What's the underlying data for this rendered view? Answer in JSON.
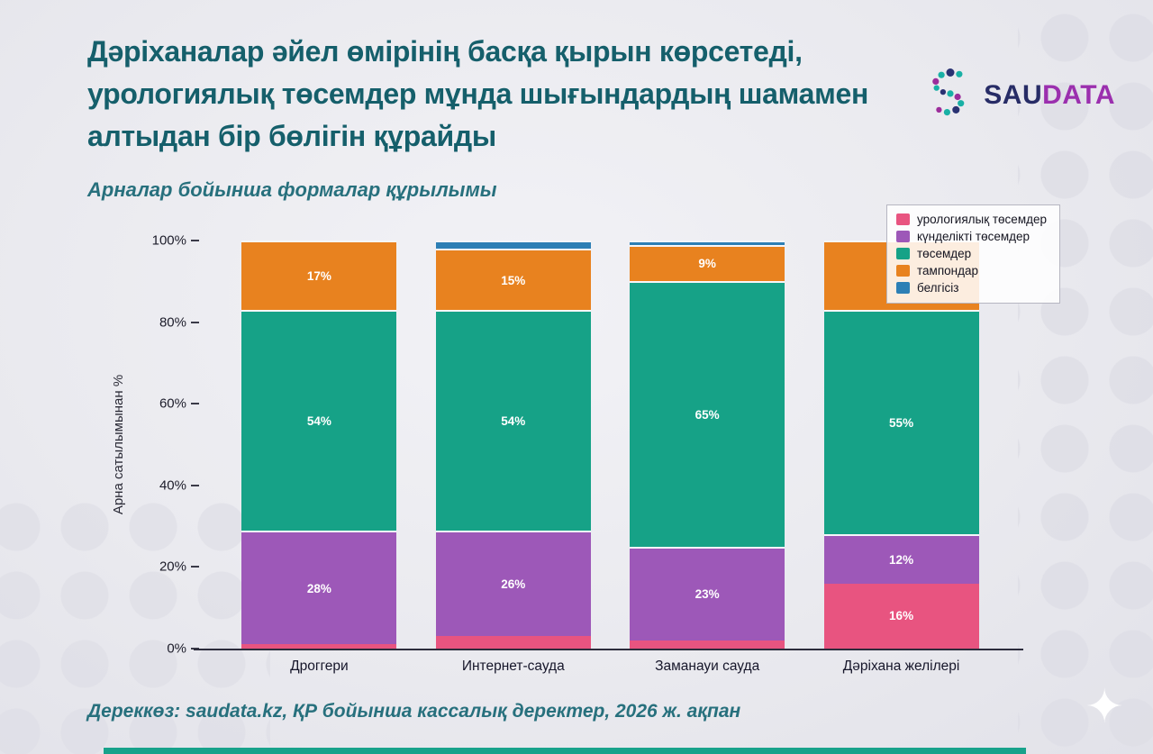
{
  "page": {
    "title_lines": [
      "Дәріханалар әйел өмірінің басқа қырын көрсетеді,",
      "урологиялық төсемдер мұнда шығындардың шамамен",
      "алтыдан бір бөлігін құрайды"
    ],
    "subtitle": "Арналар бойынша формалар құрылымы",
    "source": "Дереккөз: saudata.kz, ҚР бойынша кассалық деректер, 2026 ж. ақпан",
    "logo": {
      "primary": "SAU",
      "secondary": "DATA"
    }
  },
  "chart_data": {
    "type": "bar",
    "stacked": true,
    "title": "Дәріханалар әйел өмірінің басқа қырын көрсетеді, урологиялық төсемдер мұнда шығындардың шамамен алтыдан бір бөлігін құрайды",
    "subtitle": "Арналар бойынша формалар құрылымы",
    "ylabel": "Арна сатылымынан %",
    "ylim": [
      0,
      100
    ],
    "yticks": [
      "0%",
      "20%",
      "40%",
      "60%",
      "80%",
      "100%"
    ],
    "grid": false,
    "legend_position": "top-right",
    "categories": [
      "Дроггери",
      "Интернет-сауда",
      "Заманауи сауда",
      "Дәріхана желілері"
    ],
    "series": [
      {
        "name": "урологиялық төсемдер",
        "color": "#e85480",
        "values": [
          1,
          3,
          2,
          16
        ],
        "labels": [
          null,
          null,
          null,
          "16%"
        ]
      },
      {
        "name": "күнделікті төсемдер",
        "color": "#9d58b8",
        "values": [
          28,
          26,
          23,
          12
        ],
        "labels": [
          "28%",
          "26%",
          "23%",
          "12%"
        ]
      },
      {
        "name": "төсемдер",
        "color": "#16a287",
        "values": [
          54,
          54,
          65,
          55
        ],
        "labels": [
          "54%",
          "54%",
          "65%",
          "55%"
        ]
      },
      {
        "name": "тампондар",
        "color": "#e8821f",
        "values": [
          17,
          15,
          9,
          17
        ],
        "labels": [
          "17%",
          "15%",
          "9%",
          null
        ]
      },
      {
        "name": "белгісіз",
        "color": "#2d7fb5",
        "values": [
          0,
          2,
          1,
          0
        ],
        "labels": [
          null,
          null,
          null,
          null
        ]
      }
    ]
  }
}
